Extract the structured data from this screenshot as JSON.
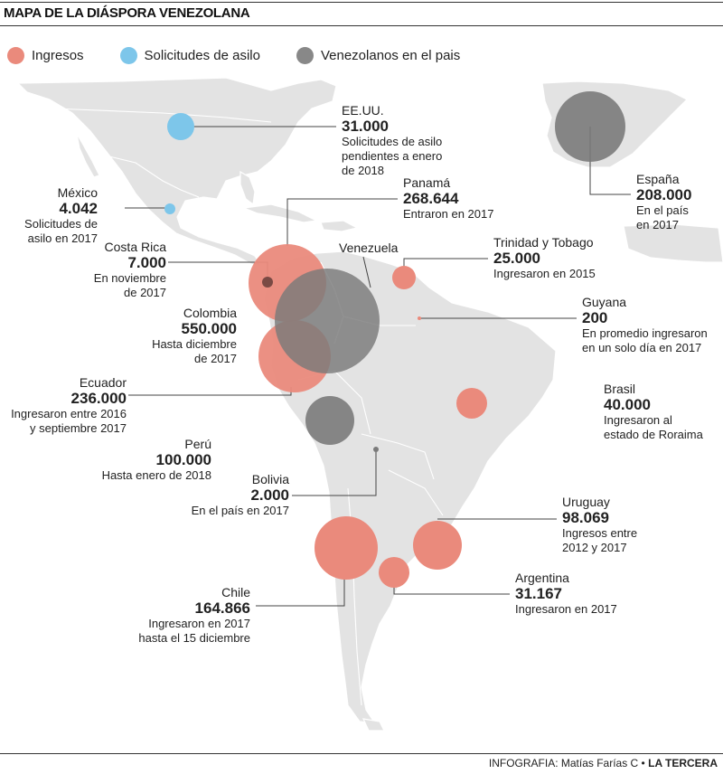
{
  "title": "MAPA DE LA DIÁSPORA VENEZOLANA",
  "legend": [
    {
      "label": "Ingresos",
      "color": "#ea8a7c"
    },
    {
      "label": "Solicitudes de asilo",
      "color": "#7dc6ea"
    },
    {
      "label": "Venezolanos en el pais",
      "color": "#888888"
    }
  ],
  "countries": {
    "eeuu": {
      "name": "EE.UU.",
      "value": "31.000",
      "desc": [
        "Solicitudes de asilo",
        "pendientes a enero",
        "de 2018"
      ]
    },
    "mexico": {
      "name": "México",
      "value": "4.042",
      "desc": [
        "Solicitudes de",
        "asilo en 2017"
      ]
    },
    "espana": {
      "name": "España",
      "value": "208.000",
      "desc": [
        "En el país",
        "en 2017"
      ]
    },
    "panama": {
      "name": "Panamá",
      "value": "268.644",
      "desc": [
        "Entraron en 2017"
      ]
    },
    "costa_rica": {
      "name": "Costa Rica",
      "value": "7.000",
      "desc": [
        "En noviembre",
        "de 2017"
      ]
    },
    "venezuela": {
      "name": "Venezuela"
    },
    "trinidad": {
      "name": "Trinidad y Tobago",
      "value": "25.000",
      "desc": [
        "Ingresaron en 2015"
      ]
    },
    "colombia": {
      "name": "Colombia",
      "value": "550.000",
      "desc": [
        "Hasta  diciembre",
        "de 2017"
      ]
    },
    "guyana": {
      "name": "Guyana",
      "value": "200",
      "desc": [
        "En promedio ingresaron",
        "en un solo día en 2017"
      ]
    },
    "ecuador": {
      "name": "Ecuador",
      "value": "236.000",
      "desc": [
        "Ingresaron entre 2016",
        "y septiembre 2017"
      ]
    },
    "brasil": {
      "name": "Brasil",
      "value": "40.000",
      "desc": [
        "Ingresaron al",
        "estado de Roraima"
      ]
    },
    "peru": {
      "name": "Perú",
      "value": "100.000",
      "desc": [
        "Hasta  enero de 2018"
      ]
    },
    "bolivia": {
      "name": "Bolivia",
      "value": "2.000",
      "desc": [
        "En el país en 2017"
      ]
    },
    "uruguay": {
      "name": "Uruguay",
      "value": "98.069",
      "desc": [
        "Ingresos entre",
        "2012 y 2017"
      ]
    },
    "argentina": {
      "name": "Argentina",
      "value": "31.167",
      "desc": [
        "Ingresaron en 2017"
      ]
    },
    "chile": {
      "name": "Chile",
      "value": "164.866",
      "desc": [
        "Ingresaron en 2017",
        "hasta el 15 diciembre"
      ]
    }
  },
  "credit": {
    "prefix": "INFOGRAFIA: Matías Farías C  •",
    "brand": "LA TERCERA"
  }
}
